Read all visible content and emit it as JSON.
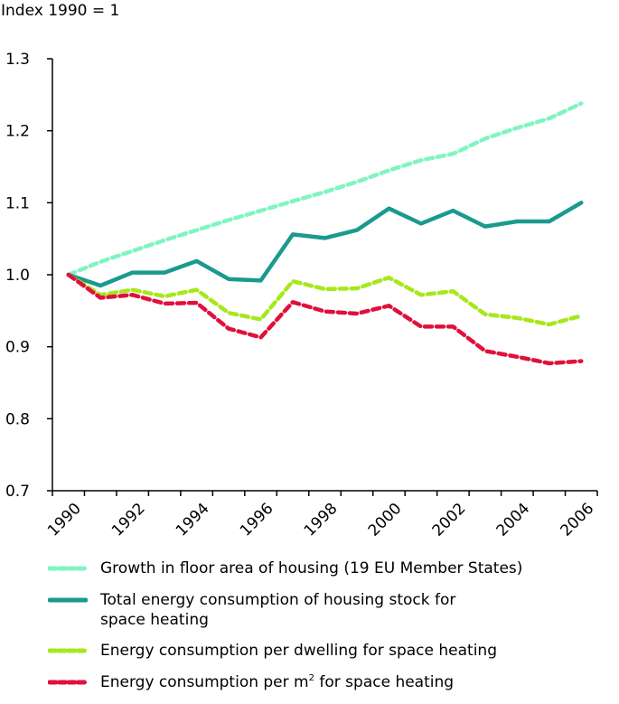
{
  "chart_data": {
    "type": "line",
    "title": "",
    "ylabel": "Index 1990 = 1",
    "xlabel": "",
    "ylim": [
      0.7,
      1.3
    ],
    "yticks": [
      "0.7",
      "0.8",
      "0.9",
      "1.0",
      "1.1",
      "1.2",
      "1.3"
    ],
    "x": [
      "1990",
      "1991",
      "1992",
      "1993",
      "1994",
      "1995",
      "1996",
      "1997",
      "1998",
      "1999",
      "2000",
      "2001",
      "2002",
      "2003",
      "2004",
      "2005",
      "2006"
    ],
    "xtick_labels": [
      "1990",
      "1992",
      "1994",
      "1996",
      "1998",
      "2000",
      "2002",
      "2004",
      "2006"
    ],
    "grid": false,
    "legend_position": "bottom",
    "series": [
      {
        "name": "Growth in floor area of housing (19 EU Member States)",
        "color": "#7ff5c0",
        "style": "dashed",
        "values": [
          1.0,
          1.018,
          1.033,
          1.048,
          1.062,
          1.076,
          1.089,
          1.102,
          1.115,
          1.129,
          1.145,
          1.159,
          1.168,
          1.189,
          1.204,
          1.217,
          1.238
        ]
      },
      {
        "name": "Total energy consumption of housing stock for space heating",
        "color": "#1a9a8f",
        "style": "solid",
        "values": [
          1.0,
          0.985,
          1.003,
          1.003,
          1.019,
          0.994,
          0.992,
          1.056,
          1.051,
          1.062,
          1.092,
          1.071,
          1.089,
          1.067,
          1.074,
          1.074,
          1.1
        ]
      },
      {
        "name": "Energy consumption per dwelling for space heating",
        "color": "#a6e81a",
        "style": "dashed",
        "values": [
          1.0,
          0.972,
          0.979,
          0.97,
          0.979,
          0.947,
          0.938,
          0.991,
          0.98,
          0.981,
          0.996,
          0.972,
          0.977,
          0.945,
          0.94,
          0.931,
          0.943
        ]
      },
      {
        "name": "Energy consumption per m² for space heating",
        "color": "#e0103c",
        "style": "dashed",
        "values": [
          1.0,
          0.968,
          0.972,
          0.96,
          0.961,
          0.925,
          0.913,
          0.962,
          0.949,
          0.946,
          0.957,
          0.928,
          0.928,
          0.894,
          0.886,
          0.877,
          0.88
        ]
      }
    ]
  },
  "legend": {
    "items": [
      {
        "label": "Growth in floor area of housing (19 EU Member States)"
      },
      {
        "label_line1": "Total energy consumption of housing stock for",
        "label_line2": "space heating"
      },
      {
        "label": "Energy consumption per dwelling for space heating"
      },
      {
        "label_pre": "Energy consumption per m",
        "label_sup": "2",
        "label_post": " for space heating"
      }
    ]
  }
}
